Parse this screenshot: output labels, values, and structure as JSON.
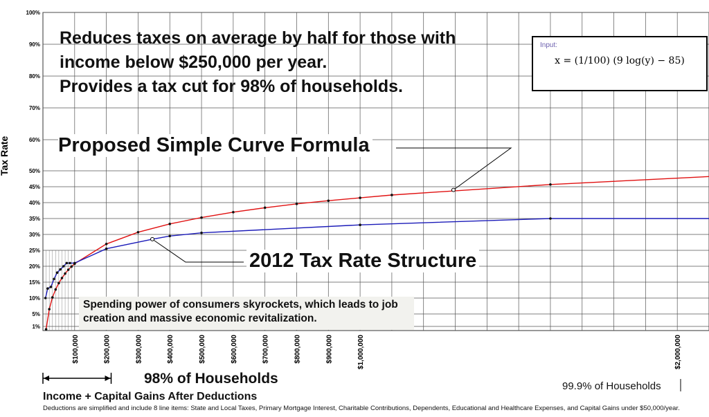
{
  "headline": {
    "line1": "Reduces taxes on average by half for those with",
    "line2": "income below $250,000 per year.",
    "line3": "Provides a tax cut for 98% of households."
  },
  "formula": {
    "input_label": "Input:",
    "expression": "x = (1/100) (9 log(y) − 85)"
  },
  "annotations": {
    "proposed": "Proposed Simple Curve Formula",
    "structure_2012": "2012 Tax Rate Structure",
    "spending": "Spending power of consumers skyrockets, which leads to job creation and massive economic revitalization.",
    "households_98": "98% of Households",
    "households_999": "99.9% of Households"
  },
  "xaxis_title": "Income + Capital Gains After Deductions",
  "footnote": "Deductions are simplified and include 8 line items: State and Local Taxes, Primary Mortgage Interest, Charitable Contributions, Dependents, Educational and Healthcare Expenses, and Capital Gains under $50,000/year.",
  "colors": {
    "proposed": "#e01010",
    "structure_2012": "#1a1ab8",
    "grid": "#555555"
  },
  "chart_data": {
    "type": "line",
    "ylabel": "Tax Rate",
    "xlabel": "Income + Capital Gains After Deductions",
    "xlim": [
      0,
      2100000
    ],
    "y_tick_labels": [
      "1%",
      "5%",
      "10%",
      "15%",
      "20%",
      "25%",
      "30%",
      "35%",
      "40%",
      "45%",
      "50%",
      "60%",
      "70%",
      "80%",
      "90%",
      "100%"
    ],
    "y_tick_values": [
      1,
      5,
      10,
      15,
      20,
      25,
      30,
      35,
      40,
      45,
      50,
      60,
      70,
      80,
      90,
      100
    ],
    "x_tick_labels": [
      "$100,000",
      "$200,000",
      "$300,000",
      "$400,000",
      "$500,000",
      "$600,000",
      "$700,000",
      "$800,000",
      "$900,000",
      "$1,000,000",
      "$2,000,000"
    ],
    "x_tick_values": [
      100000,
      200000,
      300000,
      400000,
      500000,
      600000,
      700000,
      800000,
      900000,
      1000000,
      2000000
    ],
    "grid": true,
    "series": [
      {
        "name": "Proposed Simple Curve Formula",
        "color": "#e01010",
        "x": [
          10000,
          20000,
          30000,
          40000,
          50000,
          60000,
          70000,
          80000,
          90000,
          100000,
          200000,
          300000,
          400000,
          500000,
          600000,
          700000,
          800000,
          900000,
          1000000,
          1100000,
          1600000,
          2100000
        ],
        "y": [
          0.3,
          6.5,
          10.2,
          12.7,
          14.7,
          16.3,
          17.7,
          18.9,
          19.9,
          20.8,
          27.0,
          30.7,
          33.3,
          35.3,
          37.0,
          38.4,
          39.6,
          40.6,
          41.5,
          42.4,
          45.7,
          48.2
        ]
      },
      {
        "name": "2012 Tax Rate Structure",
        "color": "#1a1ab8",
        "x": [
          8000,
          15000,
          25000,
          35000,
          45000,
          55000,
          65000,
          75000,
          85000,
          100000,
          200000,
          345000,
          400000,
          500000,
          1000000,
          1600000,
          2100000
        ],
        "y": [
          10,
          13,
          13.5,
          16,
          18,
          19,
          20,
          21,
          21,
          21,
          25.5,
          28.5,
          29.5,
          30.5,
          33,
          35,
          35
        ]
      }
    ]
  }
}
